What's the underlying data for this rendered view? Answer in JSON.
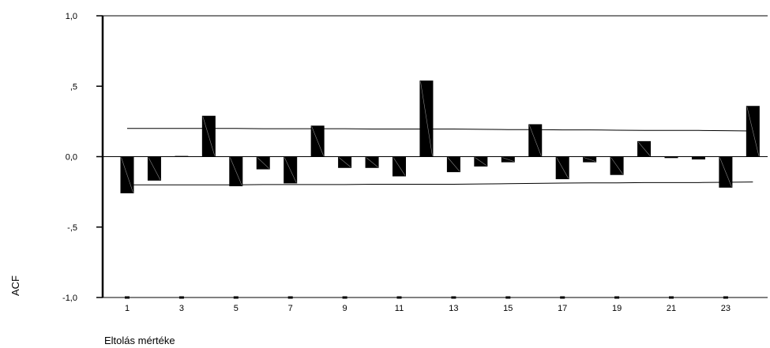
{
  "chart_data": {
    "type": "bar",
    "title": "",
    "xlabel": "Eltolás mértéke",
    "ylabel": "ACF",
    "ylim": [
      -1.0,
      1.0
    ],
    "y_ticks": [
      {
        "value": 1.0,
        "label": "1,0"
      },
      {
        "value": 0.5,
        "label": ",5"
      },
      {
        "value": 0.0,
        "label": "0,0"
      },
      {
        "value": -0.5,
        "label": "-,5"
      },
      {
        "value": -1.0,
        "label": "-1,0"
      }
    ],
    "x_tick_labels": [
      "1",
      "3",
      "5",
      "7",
      "9",
      "11",
      "13",
      "15",
      "17",
      "19",
      "21",
      "23"
    ],
    "categories": [
      1,
      2,
      3,
      4,
      5,
      6,
      7,
      8,
      9,
      10,
      11,
      12,
      13,
      14,
      15,
      16,
      17,
      18,
      19,
      20,
      21,
      22,
      23,
      24
    ],
    "values": [
      -0.26,
      -0.17,
      0.005,
      0.29,
      -0.21,
      -0.09,
      -0.19,
      0.22,
      -0.08,
      -0.08,
      -0.14,
      0.54,
      -0.11,
      -0.07,
      -0.04,
      0.23,
      -0.16,
      -0.04,
      -0.13,
      0.11,
      -0.01,
      -0.02,
      -0.22,
      0.36
    ],
    "confidence_limits": {
      "upper": [
        0.2,
        0.2,
        0.2,
        0.2,
        0.2,
        0.198,
        0.198,
        0.198,
        0.198,
        0.196,
        0.196,
        0.196,
        0.196,
        0.194,
        0.192,
        0.192,
        0.19,
        0.19,
        0.188,
        0.186,
        0.186,
        0.186,
        0.184,
        0.182
      ],
      "lower": [
        -0.2,
        -0.2,
        -0.2,
        -0.2,
        -0.2,
        -0.198,
        -0.198,
        -0.198,
        -0.198,
        -0.196,
        -0.196,
        -0.196,
        -0.196,
        -0.194,
        -0.192,
        -0.19,
        -0.188,
        -0.186,
        -0.186,
        -0.184,
        -0.184,
        -0.184,
        -0.182,
        -0.18
      ]
    },
    "grid": false,
    "legend": "none"
  }
}
